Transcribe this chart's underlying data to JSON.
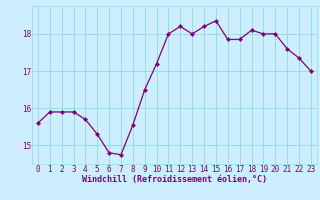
{
  "x": [
    0,
    1,
    2,
    3,
    4,
    5,
    6,
    7,
    8,
    9,
    10,
    11,
    12,
    13,
    14,
    15,
    16,
    17,
    18,
    19,
    20,
    21,
    22,
    23
  ],
  "y": [
    15.6,
    15.9,
    15.9,
    15.9,
    15.7,
    15.3,
    14.8,
    14.75,
    15.55,
    16.5,
    17.2,
    18.0,
    18.2,
    18.0,
    18.2,
    18.35,
    17.85,
    17.85,
    18.1,
    18.0,
    18.0,
    17.6,
    17.35,
    17.0
  ],
  "line_color": "#800080",
  "marker": "D",
  "marker_size": 2.0,
  "bg_color": "#cceeff",
  "grid_color": "#99dddd",
  "xlabel": "Windchill (Refroidissement éolien,°C)",
  "xlabel_color": "#800080",
  "xlabel_fontsize": 6.0,
  "tick_color": "#800080",
  "tick_fontsize": 5.5,
  "ylim": [
    14.5,
    18.75
  ],
  "yticks": [
    15,
    16,
    17,
    18
  ],
  "xlim": [
    -0.5,
    23.5
  ],
  "xticks": [
    0,
    1,
    2,
    3,
    4,
    5,
    6,
    7,
    8,
    9,
    10,
    11,
    12,
    13,
    14,
    15,
    16,
    17,
    18,
    19,
    20,
    21,
    22,
    23
  ]
}
